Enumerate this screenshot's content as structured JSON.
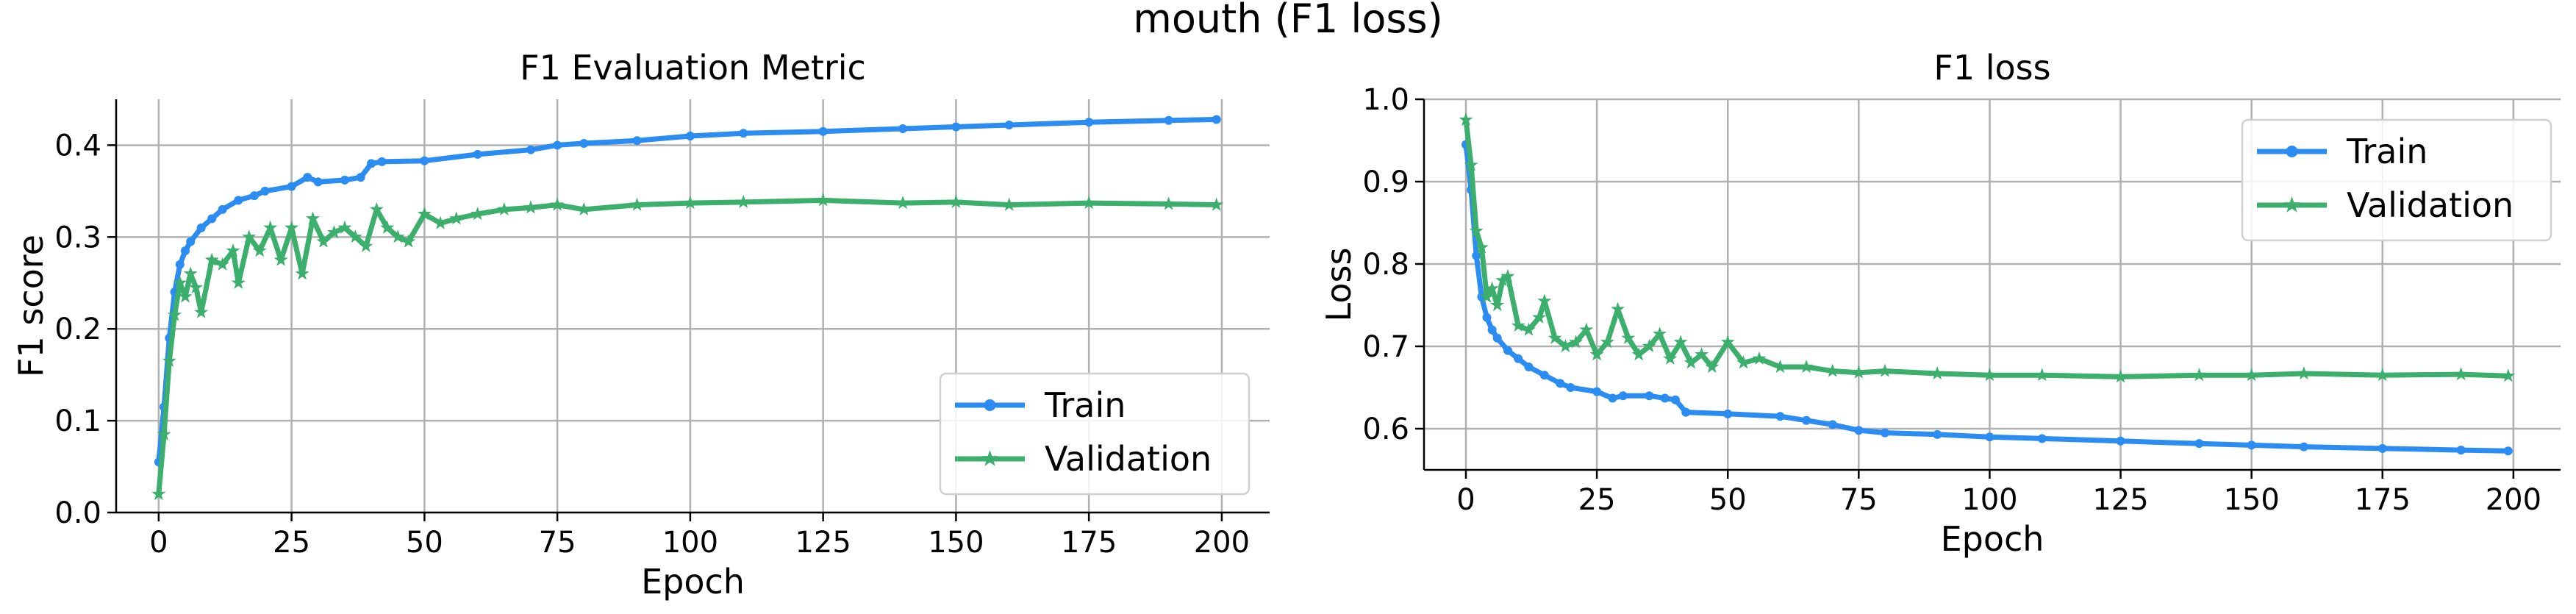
{
  "figure": {
    "title": "mouth (F1 loss)"
  },
  "colors": {
    "train": "#2b8cf2",
    "validation": "#3caf6d"
  },
  "chart_data": [
    {
      "type": "line",
      "title": "F1 Evaluation Metric",
      "xlabel": "Epoch",
      "ylabel": "F1 score",
      "xlim": [
        -8,
        209
      ],
      "ylim": [
        0.0,
        0.45
      ],
      "xticks": [
        0,
        25,
        50,
        75,
        100,
        125,
        150,
        175,
        200
      ],
      "yticks": [
        0.0,
        0.1,
        0.2,
        0.3,
        0.4
      ],
      "ytick_labels": [
        "0.0",
        "0.1",
        "0.2",
        "0.3",
        "0.4"
      ],
      "grid": true,
      "legend": "lower-right",
      "series": [
        {
          "name": "Train",
          "marker": "circle",
          "x": [
            0,
            1,
            2,
            3,
            4,
            5,
            6,
            8,
            10,
            12,
            15,
            18,
            20,
            25,
            28,
            30,
            35,
            38,
            40,
            42,
            50,
            60,
            70,
            75,
            80,
            90,
            100,
            110,
            125,
            140,
            150,
            160,
            175,
            190,
            199
          ],
          "y": [
            0.055,
            0.115,
            0.19,
            0.24,
            0.27,
            0.285,
            0.295,
            0.31,
            0.32,
            0.33,
            0.34,
            0.345,
            0.35,
            0.355,
            0.365,
            0.36,
            0.362,
            0.365,
            0.38,
            0.382,
            0.383,
            0.39,
            0.395,
            0.4,
            0.402,
            0.405,
            0.41,
            0.413,
            0.415,
            0.418,
            0.42,
            0.422,
            0.425,
            0.427,
            0.428
          ]
        },
        {
          "name": "Validation",
          "marker": "star",
          "x": [
            0,
            1,
            2,
            3,
            4,
            5,
            6,
            7,
            8,
            10,
            12,
            14,
            15,
            17,
            19,
            21,
            23,
            25,
            27,
            29,
            31,
            33,
            35,
            37,
            39,
            41,
            43,
            45,
            47,
            50,
            53,
            56,
            60,
            65,
            70,
            75,
            80,
            90,
            100,
            110,
            125,
            140,
            150,
            160,
            175,
            190,
            199
          ],
          "y": [
            0.02,
            0.085,
            0.165,
            0.215,
            0.25,
            0.235,
            0.26,
            0.245,
            0.218,
            0.275,
            0.27,
            0.285,
            0.25,
            0.3,
            0.285,
            0.31,
            0.275,
            0.31,
            0.26,
            0.32,
            0.295,
            0.305,
            0.31,
            0.3,
            0.29,
            0.33,
            0.31,
            0.3,
            0.295,
            0.325,
            0.315,
            0.32,
            0.325,
            0.33,
            0.332,
            0.335,
            0.33,
            0.335,
            0.337,
            0.338,
            0.34,
            0.337,
            0.338,
            0.335,
            0.337,
            0.336,
            0.335
          ]
        }
      ]
    },
    {
      "type": "line",
      "title": "F1 loss",
      "xlabel": "Epoch",
      "ylabel": "Loss",
      "xlim": [
        -8,
        209
      ],
      "ylim": [
        0.55,
        1.0
      ],
      "xticks": [
        0,
        25,
        50,
        75,
        100,
        125,
        150,
        175,
        200
      ],
      "yticks": [
        0.6,
        0.7,
        0.8,
        0.9,
        1.0
      ],
      "ytick_labels": [
        "0.6",
        "0.7",
        "0.8",
        "0.9",
        "1.0"
      ],
      "grid": true,
      "legend": "upper-right",
      "series": [
        {
          "name": "Train",
          "marker": "circle",
          "x": [
            0,
            1,
            2,
            3,
            4,
            5,
            6,
            8,
            10,
            12,
            15,
            18,
            20,
            25,
            28,
            30,
            35,
            38,
            40,
            42,
            50,
            60,
            65,
            70,
            75,
            80,
            90,
            100,
            110,
            125,
            140,
            150,
            160,
            175,
            190,
            199
          ],
          "y": [
            0.945,
            0.89,
            0.81,
            0.76,
            0.735,
            0.72,
            0.71,
            0.695,
            0.685,
            0.675,
            0.665,
            0.655,
            0.65,
            0.645,
            0.637,
            0.64,
            0.64,
            0.637,
            0.635,
            0.62,
            0.618,
            0.615,
            0.61,
            0.605,
            0.598,
            0.595,
            0.593,
            0.59,
            0.588,
            0.585,
            0.582,
            0.58,
            0.578,
            0.576,
            0.574,
            0.573
          ]
        },
        {
          "name": "Validation",
          "marker": "star",
          "x": [
            0,
            1,
            2,
            3,
            4,
            5,
            6,
            7,
            8,
            10,
            12,
            14,
            15,
            17,
            19,
            21,
            23,
            25,
            27,
            29,
            31,
            33,
            35,
            37,
            39,
            41,
            43,
            45,
            47,
            50,
            53,
            56,
            60,
            65,
            70,
            75,
            80,
            90,
            100,
            110,
            125,
            140,
            150,
            160,
            175,
            190,
            199
          ],
          "y": [
            0.975,
            0.92,
            0.84,
            0.82,
            0.76,
            0.77,
            0.75,
            0.78,
            0.785,
            0.725,
            0.72,
            0.735,
            0.755,
            0.71,
            0.7,
            0.705,
            0.72,
            0.69,
            0.705,
            0.745,
            0.71,
            0.69,
            0.7,
            0.715,
            0.685,
            0.705,
            0.68,
            0.69,
            0.675,
            0.705,
            0.68,
            0.685,
            0.675,
            0.675,
            0.67,
            0.668,
            0.67,
            0.667,
            0.665,
            0.665,
            0.663,
            0.665,
            0.665,
            0.667,
            0.665,
            0.666,
            0.664
          ]
        }
      ]
    }
  ]
}
